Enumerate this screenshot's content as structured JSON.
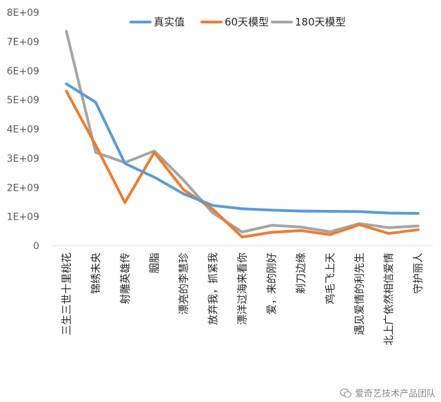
{
  "chart_data": {
    "type": "line",
    "categories": [
      "三生三世十里桃花",
      "锦绣未央",
      "射雕英雄传",
      "胭脂",
      "漂亮的李慧珍",
      "放弃我，抓紧我",
      "漂洋过海来看你",
      "爱，来的刚好",
      "剃刀边缘",
      "鸡毛飞上天",
      "遇见爱情的利先生",
      "北上广依然相信爱情",
      "守护丽人"
    ],
    "series": [
      {
        "name": "真实值",
        "color": "#5B9BD5",
        "values": [
          5550000000.0,
          4920000000.0,
          2820000000.0,
          2350000000.0,
          1780000000.0,
          1380000000.0,
          1270000000.0,
          1220000000.0,
          1190000000.0,
          1180000000.0,
          1170000000.0,
          1120000000.0,
          1110000000.0
        ]
      },
      {
        "name": "60天模型",
        "color": "#ED7D31",
        "values": [
          5300000000.0,
          3450000000.0,
          1480000000.0,
          3200000000.0,
          1920000000.0,
          1250000000.0,
          300000000.0,
          460000000.0,
          520000000.0,
          380000000.0,
          720000000.0,
          420000000.0,
          550000000.0
        ]
      },
      {
        "name": "180天模型",
        "color": "#A5A5A5",
        "values": [
          7350000000.0,
          3200000000.0,
          2850000000.0,
          3250000000.0,
          2250000000.0,
          1120000000.0,
          470000000.0,
          700000000.0,
          640000000.0,
          480000000.0,
          760000000.0,
          620000000.0,
          680000000.0
        ]
      }
    ],
    "y_tick_labels": [
      "0",
      "1E+09",
      "2E+09",
      "3E+09",
      "4E+09",
      "5E+09",
      "6E+09",
      "7E+09",
      "8E+09"
    ],
    "ylim": [
      0,
      8000000000.0
    ],
    "grid": false,
    "legend_position": "top-center"
  },
  "watermark": {
    "text": "爱奇艺技术产品团队",
    "icon": "wechat-icon"
  }
}
